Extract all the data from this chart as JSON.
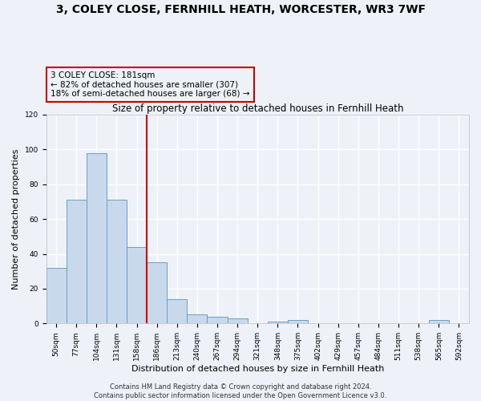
{
  "title": "3, COLEY CLOSE, FERNHILL HEATH, WORCESTER, WR3 7WF",
  "subtitle": "Size of property relative to detached houses in Fernhill Heath",
  "xlabel": "Distribution of detached houses by size in Fernhill Heath",
  "ylabel": "Number of detached properties",
  "bin_labels": [
    "50sqm",
    "77sqm",
    "104sqm",
    "131sqm",
    "158sqm",
    "186sqm",
    "213sqm",
    "240sqm",
    "267sqm",
    "294sqm",
    "321sqm",
    "348sqm",
    "375sqm",
    "402sqm",
    "429sqm",
    "457sqm",
    "484sqm",
    "511sqm",
    "538sqm",
    "565sqm",
    "592sqm"
  ],
  "bar_heights": [
    32,
    71,
    98,
    71,
    44,
    35,
    14,
    5,
    4,
    3,
    0,
    1,
    2,
    0,
    0,
    0,
    0,
    0,
    0,
    2,
    0
  ],
  "bar_color": "#c9d9ec",
  "bar_edgecolor": "#6a9ec5",
  "vline_x": 4.5,
  "vline_color": "#cc0000",
  "annotation_lines": [
    "3 COLEY CLOSE: 181sqm",
    "← 82% of detached houses are smaller (307)",
    "18% of semi-detached houses are larger (68) →"
  ],
  "annotation_box_edgecolor": "#cc0000",
  "ylim": [
    0,
    120
  ],
  "yticks": [
    0,
    20,
    40,
    60,
    80,
    100,
    120
  ],
  "footer_lines": [
    "Contains HM Land Registry data © Crown copyright and database right 2024.",
    "Contains public sector information licensed under the Open Government Licence v3.0."
  ],
  "bg_color": "#eef2f8",
  "grid_color": "#ffffff",
  "title_fontsize": 10,
  "subtitle_fontsize": 8.5,
  "axis_label_fontsize": 8,
  "tick_fontsize": 6.5,
  "annotation_fontsize": 7.5,
  "footer_fontsize": 6
}
